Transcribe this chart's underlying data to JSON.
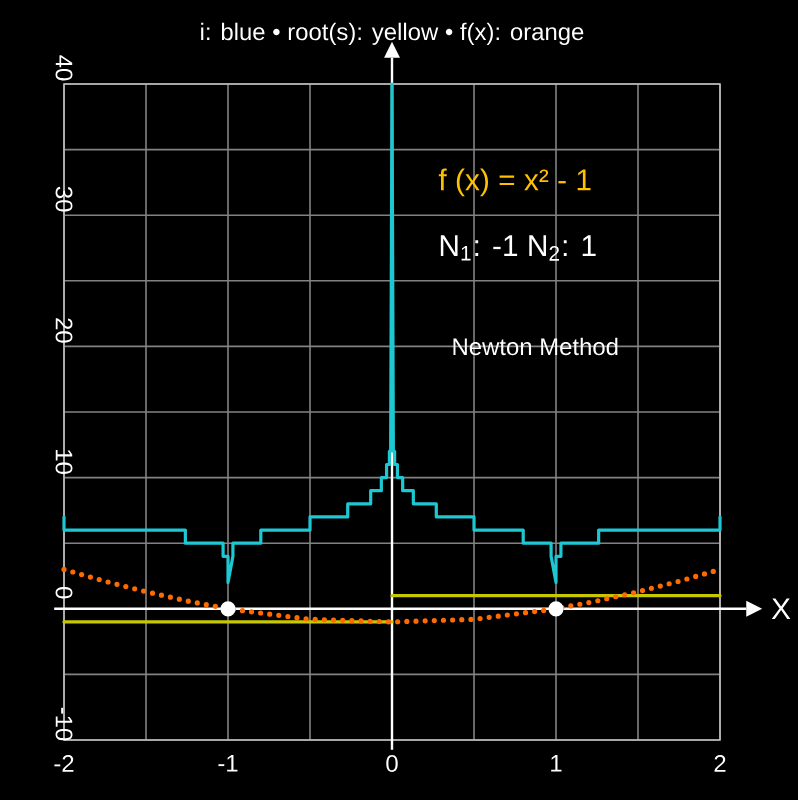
{
  "chart_data": {
    "type": "line",
    "title": "i: blue • root(s): yellow • f(x): orange",
    "xlabel": "X",
    "annotations": [
      "f (x) = x² - 1",
      "N$_{1}$: -1  N$_{2}$: 1",
      "Newton Method"
    ],
    "series": [
      {
        "color": "#1ec8d2",
        "x": [
          -2,
          -2,
          -1.26,
          -1.26,
          -1.03,
          -1.03,
          -1.0,
          -1.0,
          -0.97,
          -0.97,
          -0.8,
          -0.8,
          -0.5,
          -0.5,
          -0.27,
          -0.27,
          -0.13,
          -0.13,
          -0.065,
          -0.065,
          -0.033,
          -0.033,
          -0.016,
          -0.016,
          -0.008,
          -0.008,
          0,
          0.008,
          0.008,
          0.016,
          0.016,
          0.033,
          0.033,
          0.065,
          0.065,
          0.13,
          0.13,
          0.27,
          0.27,
          0.5,
          0.5,
          0.8,
          0.8,
          0.97,
          0.97,
          1.0,
          1.0,
          1.03,
          1.03,
          1.26,
          1.26,
          2,
          2
        ],
        "values": [
          7,
          6,
          6,
          5,
          5,
          4,
          4,
          2,
          4,
          5,
          5,
          6,
          6,
          7,
          7,
          8,
          8,
          9,
          9,
          10,
          10,
          11,
          11,
          12,
          12,
          13,
          40,
          13,
          12,
          12,
          11,
          11,
          10,
          10,
          9,
          9,
          8,
          8,
          7,
          7,
          6,
          6,
          5,
          5,
          4,
          2,
          4,
          4,
          5,
          5,
          6,
          6,
          7
        ]
      },
      {
        "color": "#c8c800",
        "x": [
          -2,
          0
        ],
        "values": [
          -1,
          -1
        ]
      },
      {
        "color": "#c8c800",
        "x": [
          0,
          2
        ],
        "values": [
          1,
          1
        ]
      },
      {
        "color": "#ff6a00",
        "line_style": "dotted",
        "x": [
          -2,
          -1.75,
          -1.5,
          -1.25,
          -1,
          -0.75,
          -0.5,
          -0.25,
          0,
          0.25,
          0.5,
          0.75,
          1,
          1.25,
          1.5,
          1.75,
          2
        ],
        "values": [
          3,
          2.1,
          1.3,
          0.6,
          0,
          -0.4,
          -0.8,
          -0.9,
          -1,
          -0.9,
          -0.8,
          -0.4,
          0,
          0.6,
          1.3,
          2.1,
          3
        ]
      },
      {
        "type": "scatter",
        "color": "#ffffff",
        "marker": "circle",
        "x": [
          -1,
          1
        ],
        "values": [
          0,
          0
        ]
      }
    ],
    "xlim": [
      -2,
      2
    ],
    "ylim": [
      -10,
      40
    ],
    "xticks": [
      -2,
      {
        "value": -1.5,
        "label": null
      },
      -1,
      {
        "value": -0.5,
        "label": null
      },
      0,
      {
        "value": 0.5,
        "label": null
      },
      1,
      {
        "value": 1.5,
        "label": null
      },
      2
    ],
    "yticks": [
      -10,
      {
        "value": -5,
        "label": null
      },
      0,
      {
        "value": 5,
        "label": null
      },
      10,
      {
        "value": 15,
        "label": null
      },
      20,
      {
        "value": 25,
        "label": null
      },
      30,
      {
        "value": 35,
        "label": null
      },
      40
    ],
    "grid": true
  }
}
